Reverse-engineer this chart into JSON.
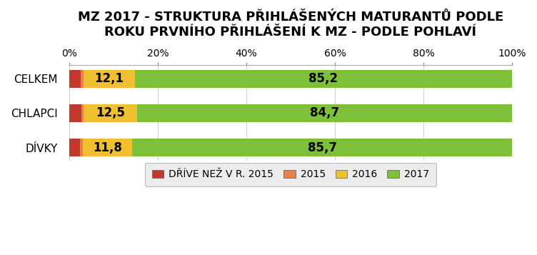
{
  "title": "MZ 2017 - STRUKTURA PŘIHLÁŠENÝCH MATURANTŮ PODLE\nROKU PRVNÍHO PŘIHLÁŠENÍ K MZ - PODLE POHLAVÍ",
  "categories": [
    "CELKEM",
    "CHLAPCI",
    "DÍVKY"
  ],
  "segments": {
    "DŘÍVE NEŽ V R. 2015": [
      2.7,
      2.8,
      2.5
    ],
    "2015": [
      0.6,
      0.5,
      0.6
    ],
    "2016": [
      11.5,
      12.0,
      11.2
    ],
    "2017": [
      85.2,
      84.7,
      85.7
    ]
  },
  "labels_combined": [
    "12,1",
    "12,5",
    "11,8"
  ],
  "labels_2017": [
    "85,2",
    "84,7",
    "85,7"
  ],
  "colors": {
    "DŘÍVE NEŽ V R. 2015": "#c0392b",
    "2015": "#e8824a",
    "2016": "#f0c030",
    "2017": "#7dc13a"
  },
  "xlim": [
    0,
    100
  ],
  "xticks": [
    0,
    20,
    40,
    60,
    80,
    100
  ],
  "xticklabels": [
    "0%",
    "20%",
    "40%",
    "60%",
    "80%",
    "100%"
  ],
  "background_color": "#ffffff",
  "plot_bg_color": "#ffffff",
  "title_fontsize": 13,
  "tick_fontsize": 10,
  "label_fontsize": 12,
  "ytick_fontsize": 11,
  "legend_fontsize": 10,
  "bar_height": 0.52
}
